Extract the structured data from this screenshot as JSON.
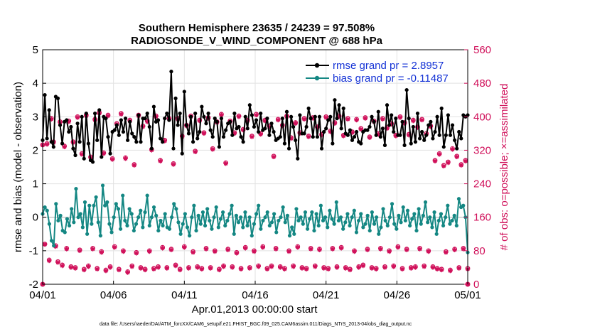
{
  "chart_data": {
    "type": "line",
    "title": "Southern Hemisphere 23635 / 24239 = 97.508%",
    "subtitle": "RADIOSONDE_V_WIND_COMPONENT @ 688 hPa",
    "xlabel": "Apr.01,2013 00:00:00 start",
    "ylabel": "rmse and bias (model - observation)",
    "y2label": "# of obs: o=possible; ×=assimilated",
    "x_ticks": [
      "04/01",
      "04/06",
      "04/11",
      "04/16",
      "04/21",
      "04/26",
      "05/01"
    ],
    "x_tick_days": [
      0,
      5,
      10,
      15,
      20,
      25,
      30
    ],
    "xlim": [
      0,
      30
    ],
    "ylim": [
      -2,
      5
    ],
    "y_ticks": [
      "-2",
      "-1",
      "0",
      "1",
      "2",
      "3",
      "4",
      "5"
    ],
    "y2lim": [
      0,
      560
    ],
    "y2_ticks": [
      "0",
      "80",
      "160",
      "240",
      "320",
      "400",
      "480",
      "560"
    ],
    "grid": true,
    "legend_position": "top-right",
    "colors": {
      "rmse": "#000000",
      "bias": "#148783",
      "obs": "#d0105a",
      "legend_text": "#1533d6",
      "zero_line": "#c8c8c8"
    },
    "series": [
      {
        "name": "rmse grand pr = 2.8957",
        "axis": "left",
        "values": [
          2.3,
          3.65,
          2.35,
          3.2,
          2.25,
          2.1,
          3.6,
          3.55,
          2.75,
          2.2,
          2.85,
          2.9,
          2.55,
          2.7,
          2.05,
          1.85,
          2.8,
          2.25,
          3.0,
          1.75,
          3.1,
          2.2,
          1.7,
          1.65,
          3.1,
          2.3,
          3.2,
          1.8,
          3.0,
          2.95,
          2.4,
          1.9,
          2.55,
          2.6,
          2.75,
          2.45,
          2.9,
          2.55,
          2.95,
          2.3,
          2.85,
          2.5,
          2.4,
          2.25,
          3.05,
          2.25,
          2.95,
          2.95,
          3.1,
          2.7,
          2.05,
          3.3,
          2.85,
          2.9,
          2.35,
          2.25,
          2.95,
          3.1,
          2.9,
          4.35,
          2.05,
          3.55,
          2.75,
          3.1,
          1.9,
          3.75,
          2.75,
          2.5,
          3.0,
          2.25,
          3.1,
          2.35,
          2.55,
          3.3,
          3.0,
          2.8,
          3.1,
          2.6,
          2.4,
          2.95,
          2.85,
          2.1,
          2.95,
          2.4,
          2.6,
          2.8,
          2.85,
          2.45,
          3.1,
          2.65,
          2.7,
          2.4,
          2.25,
          3.0,
          2.65,
          3.35,
          3.05,
          2.7,
          2.9,
          2.55,
          3.1,
          2.6,
          2.65,
          2.95,
          2.45,
          2.8,
          2.55,
          2.3,
          2.35,
          2.4,
          2.95,
          2.2,
          3.15,
          2.05,
          3.0,
          2.7,
          2.3,
          1.75,
          3.05,
          2.5,
          2.5,
          2.7,
          3.25,
          2.95,
          2.4,
          3.0,
          2.4,
          3.0,
          2.05,
          2.55,
          2.65,
          2.9,
          3.0,
          2.2,
          3.5,
          2.95,
          3.35,
          2.65,
          3.25,
          2.5,
          2.45,
          2.6,
          2.3,
          2.4,
          2.55,
          2.25,
          2.2,
          2.55,
          2.6,
          2.6,
          2.7,
          3.0,
          2.85,
          2.45,
          3.15,
          2.4,
          2.65,
          2.15,
          3.35,
          2.75,
          3.05,
          2.55,
          2.95,
          2.45,
          2.45,
          2.85,
          2.15,
          3.8,
          2.95,
          2.2,
          2.7,
          2.25,
          3.1,
          2.35,
          2.55,
          2.3,
          2.45,
          2.75,
          2.85,
          2.35,
          2.55,
          3.0,
          2.45,
          3.25,
          2.1,
          2.45,
          3.05,
          2.45,
          2.75,
          2.3,
          2.05,
          2.55,
          2.35,
          3.05,
          3.0,
          3.05
        ],
        "style": "line-marker"
      },
      {
        "name": "bias grand pr = -0.11487",
        "axis": "left",
        "values": [
          0.1,
          0.3,
          0.2,
          -0.2,
          -0.7,
          -0.85,
          0.4,
          -0.1,
          0.05,
          -0.4,
          -0.45,
          -0.05,
          -0.25,
          0.25,
          -0.15,
          0.85,
          0.0,
          0.1,
          -0.3,
          0.45,
          -0.5,
          0.35,
          -0.2,
          0.35,
          0.6,
          -0.15,
          -0.55,
          0.95,
          0.35,
          0.45,
          -0.2,
          -0.45,
          0.0,
          0.4,
          0.25,
          -0.35,
          0.65,
          -0.1,
          -0.25,
          0.25,
          0.1,
          -0.4,
          -0.2,
          0.0,
          0.2,
          -0.3,
          0.15,
          0.65,
          -0.25,
          0.0,
          0.3,
          0.05,
          -0.4,
          -0.1,
          -0.25,
          0.1,
          -0.3,
          -0.35,
          0.0,
          0.4,
          0.25,
          -0.15,
          -0.5,
          -0.2,
          0.1,
          -0.3,
          -0.55,
          0.0,
          0.35,
          -0.4,
          0.05,
          -0.2,
          0.15,
          -0.25,
          0.25,
          -0.1,
          -0.35,
          0.0,
          0.3,
          -0.3,
          -0.05,
          0.15,
          -0.25,
          -0.1,
          0.1,
          0.35,
          -0.5,
          0.05,
          -0.15,
          0.0,
          -0.3,
          0.15,
          -0.25,
          0.0,
          -0.55,
          -0.2,
          0.1,
          0.35,
          -0.35,
          -0.1,
          0.0,
          0.15,
          -0.25,
          -0.15,
          0.1,
          -0.45,
          -0.1,
          0.0,
          0.3,
          -0.15,
          0.05,
          -0.55,
          -0.3,
          -0.5,
          0.25,
          -0.1,
          0.0,
          -0.2,
          0.15,
          -0.35,
          -0.05,
          0.15,
          -0.4,
          0.1,
          -0.25,
          0.35,
          -0.1,
          0.0,
          -0.3,
          0.2,
          -0.05,
          -0.2,
          0.45,
          -0.1,
          0.0,
          -0.35,
          -0.15,
          0.1,
          -0.25,
          0.0,
          0.2,
          -0.45,
          -0.1,
          0.1,
          -0.3,
          -0.2,
          0.05,
          -0.4,
          0.15,
          -0.2,
          0.0,
          -0.5,
          -0.3,
          0.25,
          -0.1,
          -0.25,
          0.0,
          0.4,
          -0.2,
          -0.35,
          0.05,
          -0.15,
          0.3,
          -0.1,
          0.2,
          -0.25,
          -0.05,
          0.1,
          -0.4,
          0.25,
          -0.2,
          0.05,
          0.45,
          -0.15,
          0.0,
          -0.3,
          0.15,
          -0.5,
          -0.1,
          0.1,
          -0.25,
          0.0,
          0.35,
          -0.2,
          -0.1,
          0.05,
          -0.25,
          0.55,
          0.3,
          0.35,
          0.0,
          -1.05
        ],
        "style": "line-marker"
      },
      {
        "name": "obs possible",
        "axis": "right",
        "values": [
          333,
          96,
          336,
          58,
          396,
          340,
          92,
          54,
          388,
          46,
          330,
          86,
          390,
          42,
          340,
          40,
          400,
          82,
          312,
          36,
          404,
          44,
          304,
          86,
          394,
          38,
          410,
          78,
          314,
          34,
          404,
          42,
          300,
          90,
          384,
          36,
          408,
          80,
          302,
          30,
          392,
          44,
          286,
          76,
          404,
          40,
          378,
          36,
          390,
          80,
          322,
          38,
          402,
          42,
          296,
          88,
          344,
          40,
          396,
          84,
          288,
          46,
          396,
          36,
          354,
          90,
          380,
          40,
          402,
          78,
          318,
          42,
          392,
          38,
          362,
          86,
          398,
          40,
          324,
          80,
          388,
          36,
          406,
          44,
          290,
          84,
          390,
          42,
          362,
          76,
          402,
          38,
          370,
          88,
          392,
          40,
          354,
          80,
          406,
          44,
          360,
          90,
          392,
          38,
          378,
          44,
          306,
          86,
          394,
          42,
          380,
          38,
          402,
          80,
          350,
          44,
          386,
          90,
          362,
          40,
          396,
          38,
          354,
          86,
          398,
          44,
          376,
          84,
          358,
          40,
          400,
          38,
          366,
          86,
          386,
          42,
          402,
          88,
          356,
          40,
          396,
          36,
          364,
          80,
          394,
          42,
          372,
          46,
          398,
          84,
          352,
          40,
          390,
          38,
          360,
          86,
          396,
          42,
          374,
          80,
          384,
          44,
          356,
          90,
          400,
          38,
          386,
          84,
          358,
          40,
          392,
          42,
          376,
          86,
          394,
          44,
          360,
          80,
          378,
          42,
          296,
          38,
          312,
          36,
          284,
          78,
          292,
          34,
          324,
          84,
          306,
          40,
          286,
          86,
          296,
          38
        ],
        "style": "circle"
      },
      {
        "name": "obs assimilated",
        "axis": "right",
        "values": [
          332,
          95,
          334,
          56,
          394,
          338,
          90,
          52,
          386,
          44,
          328,
          84,
          388,
          40,
          338,
          38,
          398,
          80,
          310,
          34,
          402,
          42,
          302,
          84,
          392,
          36,
          408,
          76,
          312,
          32,
          402,
          40,
          298,
          88,
          382,
          34,
          406,
          78,
          300,
          28,
          390,
          42,
          284,
          74,
          402,
          38,
          376,
          34,
          388,
          78,
          320,
          36,
          400,
          40,
          294,
          86,
          342,
          38,
          394,
          82,
          286,
          44,
          394,
          34,
          352,
          88,
          378,
          38,
          400,
          76,
          316,
          40,
          390,
          36,
          360,
          84,
          396,
          38,
          322,
          78,
          386,
          34,
          404,
          42,
          288,
          82,
          388,
          40,
          360,
          74,
          400,
          36,
          368,
          86,
          390,
          38,
          352,
          78,
          404,
          42,
          358,
          88,
          390,
          36,
          376,
          42,
          304,
          84,
          392,
          40,
          378,
          36,
          400,
          78,
          348,
          42,
          384,
          88,
          360,
          38,
          394,
          36,
          352,
          84,
          396,
          42,
          374,
          82,
          356,
          38,
          398,
          36,
          364,
          84,
          384,
          40,
          400,
          86,
          354,
          38,
          394,
          34,
          362,
          78,
          392,
          40,
          370,
          44,
          396,
          82,
          350,
          38,
          388,
          36,
          358,
          84,
          394,
          40,
          372,
          78,
          382,
          42,
          354,
          88,
          398,
          36,
          384,
          82,
          356,
          38,
          390,
          40,
          374,
          84,
          392,
          42,
          358,
          78,
          376,
          40,
          294,
          36,
          310,
          34,
          282,
          76,
          290,
          32,
          322,
          82,
          304,
          38,
          284,
          84,
          294,
          36
        ],
        "style": "asterisk"
      }
    ],
    "footnote": "data file: /Users/raeder/DAI/ATM_forcXX/CAM6_setup/f.e21.FHIST_BGC.f09_025.CAM6assim.011/Diags_NTrS_2013-04/obs_diag_output.nc"
  }
}
